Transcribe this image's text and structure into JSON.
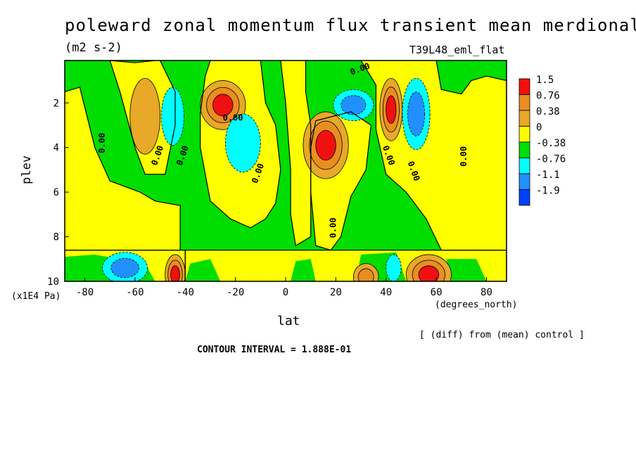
{
  "chart_data": {
    "type": "heatmap",
    "title": "poleward zonal momentum flux transient mean merdional",
    "subtitle": "(m2 s-2)",
    "experiment": "T39L48_eml_flat",
    "xlabel": "lat",
    "xunits": "(degrees_north)",
    "ylabel": "plev",
    "yunits": "(x1E4 Pa)",
    "note": "[ (diff) from (mean) control ]",
    "contour_interval": "CONTOUR INTERVAL = 1.888E-01",
    "xlim": [
      -88,
      88
    ],
    "ylim": [
      10,
      0
    ],
    "x_ticks": [
      "-80",
      "-60",
      "-40",
      "-20",
      "0",
      "20",
      "40",
      "60",
      "80"
    ],
    "y_ticks": [
      "2",
      "4",
      "6",
      "8",
      "10"
    ],
    "legend": {
      "labels": [
        "1.5",
        "0.76",
        "0.38",
        "0",
        "-0.38",
        "-0.76",
        "-1.1",
        "-1.9"
      ],
      "colors": [
        "#f01010",
        "#e98e1e",
        "#e8a828",
        "#ffff00",
        "#00dd00",
        "#00ffff",
        "#2090ff",
        "#0040ff"
      ]
    },
    "contour_labels": [
      "0.00",
      "0.00",
      "0.00",
      "0.00",
      "0.00",
      "0.00",
      "0.00",
      "0.00",
      "0.00",
      "0.00"
    ],
    "base_field": [
      {
        "lat": -88,
        "plev": [
          0.5,
          10
        ],
        "sign": "positive"
      },
      {
        "lat": -5,
        "plev": [
          0.5,
          6
        ],
        "sign": "positive"
      },
      {
        "lat": 10,
        "plev": [
          2,
          8
        ],
        "sign": "positive"
      },
      {
        "lat": 45,
        "plev": [
          5,
          8
        ],
        "sign": "positive"
      },
      {
        "lat": 75,
        "plev": [
          1,
          10
        ],
        "sign": "positive"
      }
    ],
    "features": [
      {
        "lat": -56,
        "plev": 2.6,
        "value": 0.6,
        "sign": "positive"
      },
      {
        "lat": -25,
        "plev": 2.0,
        "value": 1.5,
        "sign": "positive"
      },
      {
        "lat": 16,
        "plev": 3.8,
        "value": 1.5,
        "sign": "positive"
      },
      {
        "lat": 42,
        "plev": 2.3,
        "value": 1.5,
        "sign": "positive"
      },
      {
        "lat": 58,
        "plev": 9.6,
        "value": 1.9,
        "sign": "positive"
      },
      {
        "lat": -44,
        "plev": 9.6,
        "value": 1.5,
        "sign": "positive"
      },
      {
        "lat": 33,
        "plev": 9.8,
        "value": 0.76,
        "sign": "positive"
      },
      {
        "lat": -45,
        "plev": 2.5,
        "value": -0.76,
        "sign": "negative"
      },
      {
        "lat": -16,
        "plev": 3.8,
        "value": -0.9,
        "sign": "negative"
      },
      {
        "lat": 27,
        "plev": 2.0,
        "value": -0.9,
        "sign": "negative"
      },
      {
        "lat": 52,
        "plev": 2.5,
        "value": -1.1,
        "sign": "negative"
      },
      {
        "lat": -65,
        "plev": 9.4,
        "value": -1.1,
        "sign": "negative"
      },
      {
        "lat": 43,
        "plev": 9.4,
        "value": -0.76,
        "sign": "negative"
      }
    ]
  }
}
